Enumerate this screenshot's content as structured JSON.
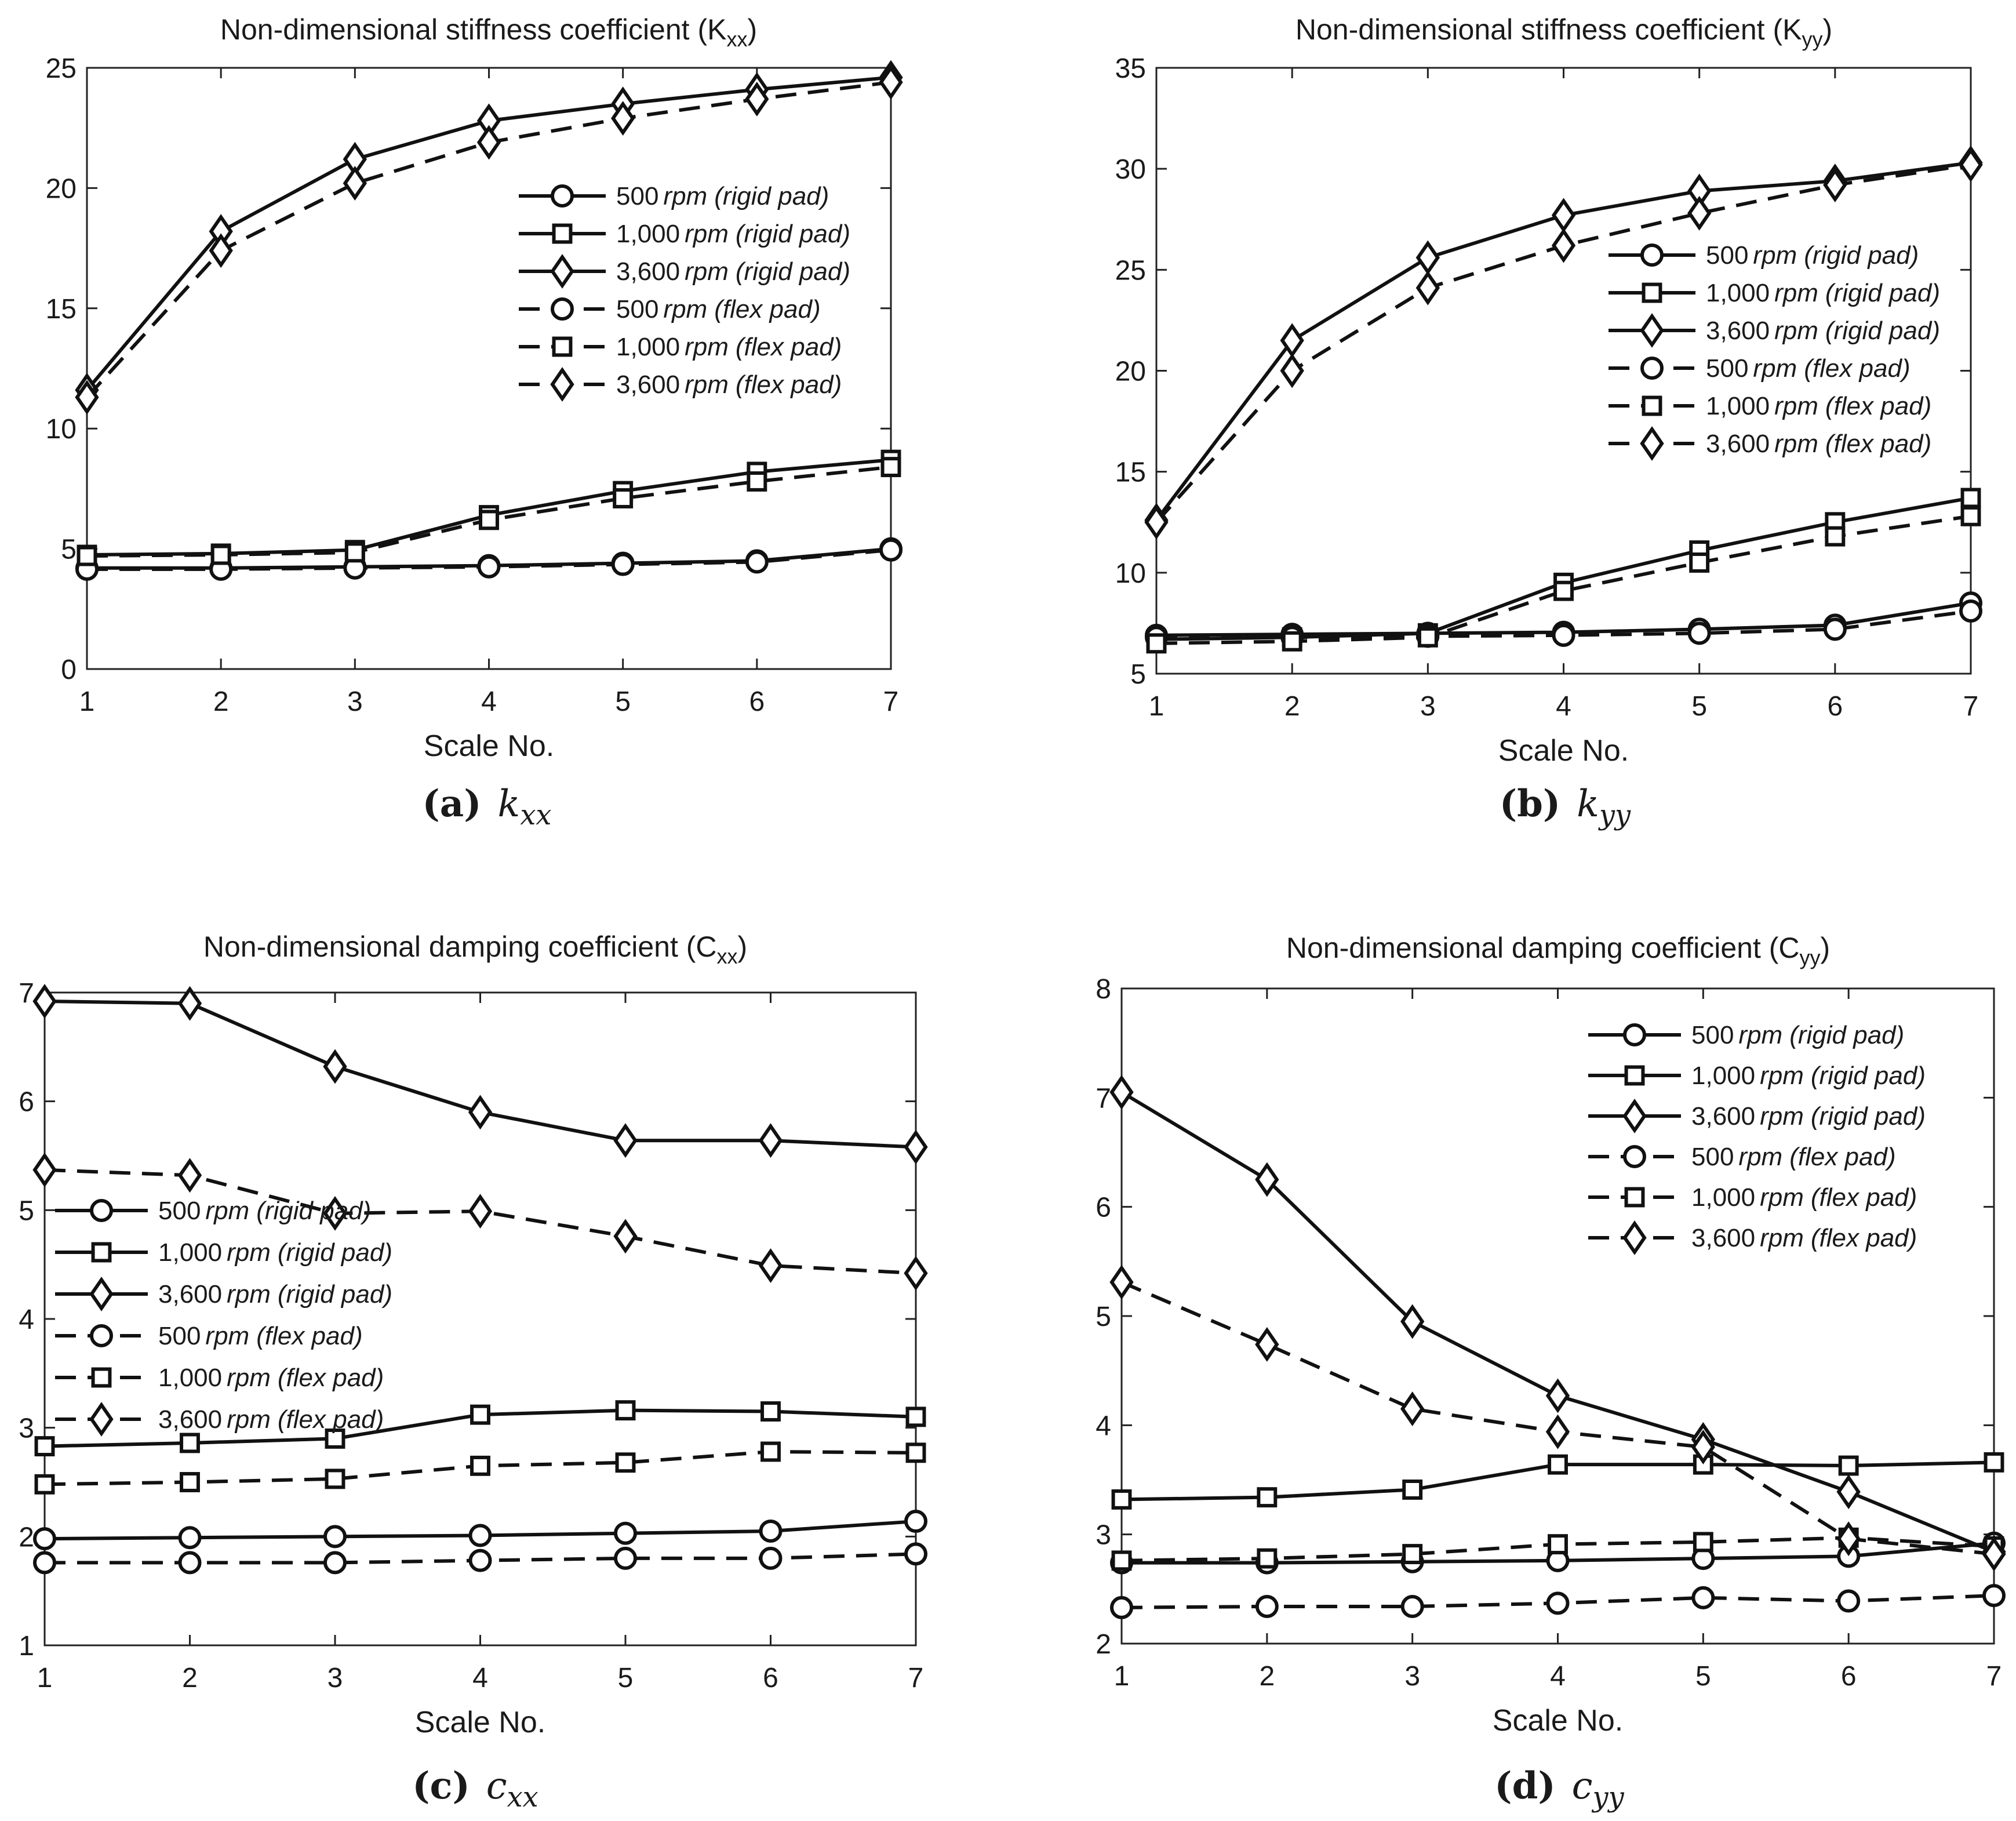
{
  "legend_entries": [
    {
      "speed": "500",
      "unit": "rpm",
      "cond": "(rigid pad)",
      "marker": "circle",
      "dashed": false
    },
    {
      "speed": "1,000",
      "unit": "rpm",
      "cond": "(rigid pad)",
      "marker": "square",
      "dashed": false
    },
    {
      "speed": "3,600",
      "unit": "rpm",
      "cond": "(rigid pad)",
      "marker": "diamond",
      "dashed": false
    },
    {
      "speed": "500",
      "unit": "rpm",
      "cond": "(flex pad)",
      "marker": "circle",
      "dashed": true
    },
    {
      "speed": "1,000",
      "unit": "rpm",
      "cond": "(flex pad)",
      "marker": "square",
      "dashed": true
    },
    {
      "speed": "3,600",
      "unit": "rpm",
      "cond": "(flex pad)",
      "marker": "diamond",
      "dashed": true
    }
  ],
  "chart_data": [
    {
      "id": "a",
      "type": "line",
      "title": "Non-dimensional stiffness coefficient (K",
      "title_sub": "xx",
      "title_close": ")",
      "xlabel": "Scale No.",
      "caption_label": "(a)",
      "caption_var": "k",
      "caption_sub": "xx",
      "legend_position": "center-right",
      "x": [
        1,
        2,
        3,
        4,
        5,
        6,
        7
      ],
      "xlim": [
        1,
        7
      ],
      "ylim": [
        0,
        25
      ],
      "yticks": [
        0,
        5,
        10,
        15,
        20,
        25
      ],
      "series": [
        {
          "name": "500 rpm (rigid pad)",
          "values": [
            4.2,
            4.2,
            4.25,
            4.3,
            4.4,
            4.5,
            5.0
          ]
        },
        {
          "name": "1,000 rpm (rigid pad)",
          "values": [
            4.75,
            4.8,
            4.95,
            6.4,
            7.4,
            8.2,
            8.7
          ]
        },
        {
          "name": "3,600 rpm (rigid pad)",
          "values": [
            11.6,
            18.2,
            21.2,
            22.8,
            23.5,
            24.1,
            24.6
          ]
        },
        {
          "name": "500 rpm (flex pad)",
          "values": [
            4.15,
            4.15,
            4.2,
            4.25,
            4.35,
            4.45,
            4.95
          ]
        },
        {
          "name": "1,000 rpm (flex pad)",
          "values": [
            4.7,
            4.75,
            4.85,
            6.2,
            7.1,
            7.8,
            8.4
          ]
        },
        {
          "name": "3,600 rpm (flex pad)",
          "values": [
            11.3,
            17.4,
            20.2,
            21.9,
            22.9,
            23.7,
            24.4
          ]
        }
      ]
    },
    {
      "id": "b",
      "type": "line",
      "title": "Non-dimensional stiffness coefficient (K",
      "title_sub": "yy",
      "title_close": ")",
      "xlabel": "Scale No.",
      "caption_label": "(b)",
      "caption_var": "k",
      "caption_sub": "yy",
      "legend_position": "center-right",
      "x": [
        1,
        2,
        3,
        4,
        5,
        6,
        7
      ],
      "xlim": [
        1,
        7
      ],
      "ylim": [
        5,
        35
      ],
      "yticks": [
        5,
        10,
        15,
        20,
        25,
        30,
        35
      ],
      "series": [
        {
          "name": "500 rpm (rigid pad)",
          "values": [
            6.9,
            6.95,
            7.0,
            7.05,
            7.2,
            7.4,
            8.5
          ]
        },
        {
          "name": "1,000 rpm (rigid pad)",
          "values": [
            6.7,
            6.8,
            7.0,
            9.5,
            11.1,
            12.5,
            13.7
          ]
        },
        {
          "name": "3,600 rpm (rigid pad)",
          "values": [
            12.6,
            21.5,
            25.6,
            27.7,
            28.9,
            29.4,
            30.3
          ]
        },
        {
          "name": "500 rpm (flex pad)",
          "values": [
            6.8,
            6.8,
            6.85,
            6.9,
            7.0,
            7.2,
            8.1
          ]
        },
        {
          "name": "1,000 rpm (flex pad)",
          "values": [
            6.5,
            6.6,
            6.8,
            9.1,
            10.5,
            11.8,
            12.8
          ]
        },
        {
          "name": "3,600 rpm (flex pad)",
          "values": [
            12.5,
            20.0,
            24.1,
            26.2,
            27.8,
            29.2,
            30.2
          ]
        }
      ]
    },
    {
      "id": "c",
      "type": "line",
      "title": "Non-dimensional damping coefficient (C",
      "title_sub": "xx",
      "title_close": ")",
      "xlabel": "Scale No.",
      "caption_label": "(c)",
      "caption_var": "c",
      "caption_sub": "xx",
      "legend_position": "center-left",
      "x": [
        1,
        2,
        3,
        4,
        5,
        6,
        7
      ],
      "xlim": [
        1,
        7
      ],
      "ylim": [
        1,
        7
      ],
      "yticks": [
        1,
        2,
        3,
        4,
        5,
        6,
        7
      ],
      "series": [
        {
          "name": "500 rpm (rigid pad)",
          "values": [
            1.98,
            1.99,
            2.0,
            2.01,
            2.03,
            2.05,
            2.14
          ]
        },
        {
          "name": "1,000 rpm (rigid pad)",
          "values": [
            2.83,
            2.86,
            2.9,
            3.12,
            3.16,
            3.15,
            3.1
          ]
        },
        {
          "name": "3,600 rpm (rigid pad)",
          "values": [
            6.92,
            6.9,
            6.32,
            5.9,
            5.64,
            5.64,
            5.58
          ]
        },
        {
          "name": "500 rpm (flex pad)",
          "values": [
            1.76,
            1.76,
            1.76,
            1.78,
            1.8,
            1.8,
            1.84
          ]
        },
        {
          "name": "1,000 rpm (flex pad)",
          "values": [
            2.48,
            2.5,
            2.53,
            2.65,
            2.68,
            2.78,
            2.77
          ]
        },
        {
          "name": "3,600 rpm (flex pad)",
          "values": [
            5.37,
            5.32,
            4.97,
            4.99,
            4.76,
            4.49,
            4.42
          ]
        }
      ]
    },
    {
      "id": "d",
      "type": "line",
      "title": "Non-dimensional damping coefficient (C",
      "title_sub": "yy",
      "title_close": ")",
      "xlabel": "Scale No.",
      "caption_label": "(d)",
      "caption_var": "c",
      "caption_sub": "yy",
      "legend_position": "top-right",
      "x": [
        1,
        2,
        3,
        4,
        5,
        6,
        7
      ],
      "xlim": [
        1,
        7
      ],
      "ylim": [
        2,
        8
      ],
      "yticks": [
        2,
        3,
        4,
        5,
        6,
        7,
        8
      ],
      "series": [
        {
          "name": "500 rpm (rigid pad)",
          "values": [
            2.74,
            2.74,
            2.75,
            2.76,
            2.78,
            2.8,
            2.92
          ]
        },
        {
          "name": "1,000 rpm (rigid pad)",
          "values": [
            3.32,
            3.34,
            3.41,
            3.64,
            3.64,
            3.63,
            3.66
          ]
        },
        {
          "name": "3,600 rpm (rigid pad)",
          "values": [
            7.05,
            6.25,
            4.95,
            4.27,
            3.87,
            3.39,
            2.84
          ]
        },
        {
          "name": "500 rpm (flex pad)",
          "values": [
            2.33,
            2.34,
            2.34,
            2.37,
            2.42,
            2.39,
            2.44
          ]
        },
        {
          "name": "1,000 rpm (flex pad)",
          "values": [
            2.76,
            2.78,
            2.82,
            2.91,
            2.93,
            2.97,
            2.89
          ]
        },
        {
          "name": "3,600 rpm (flex pad)",
          "values": [
            5.31,
            4.74,
            4.15,
            3.94,
            3.8,
            2.96,
            2.82
          ]
        }
      ]
    }
  ]
}
